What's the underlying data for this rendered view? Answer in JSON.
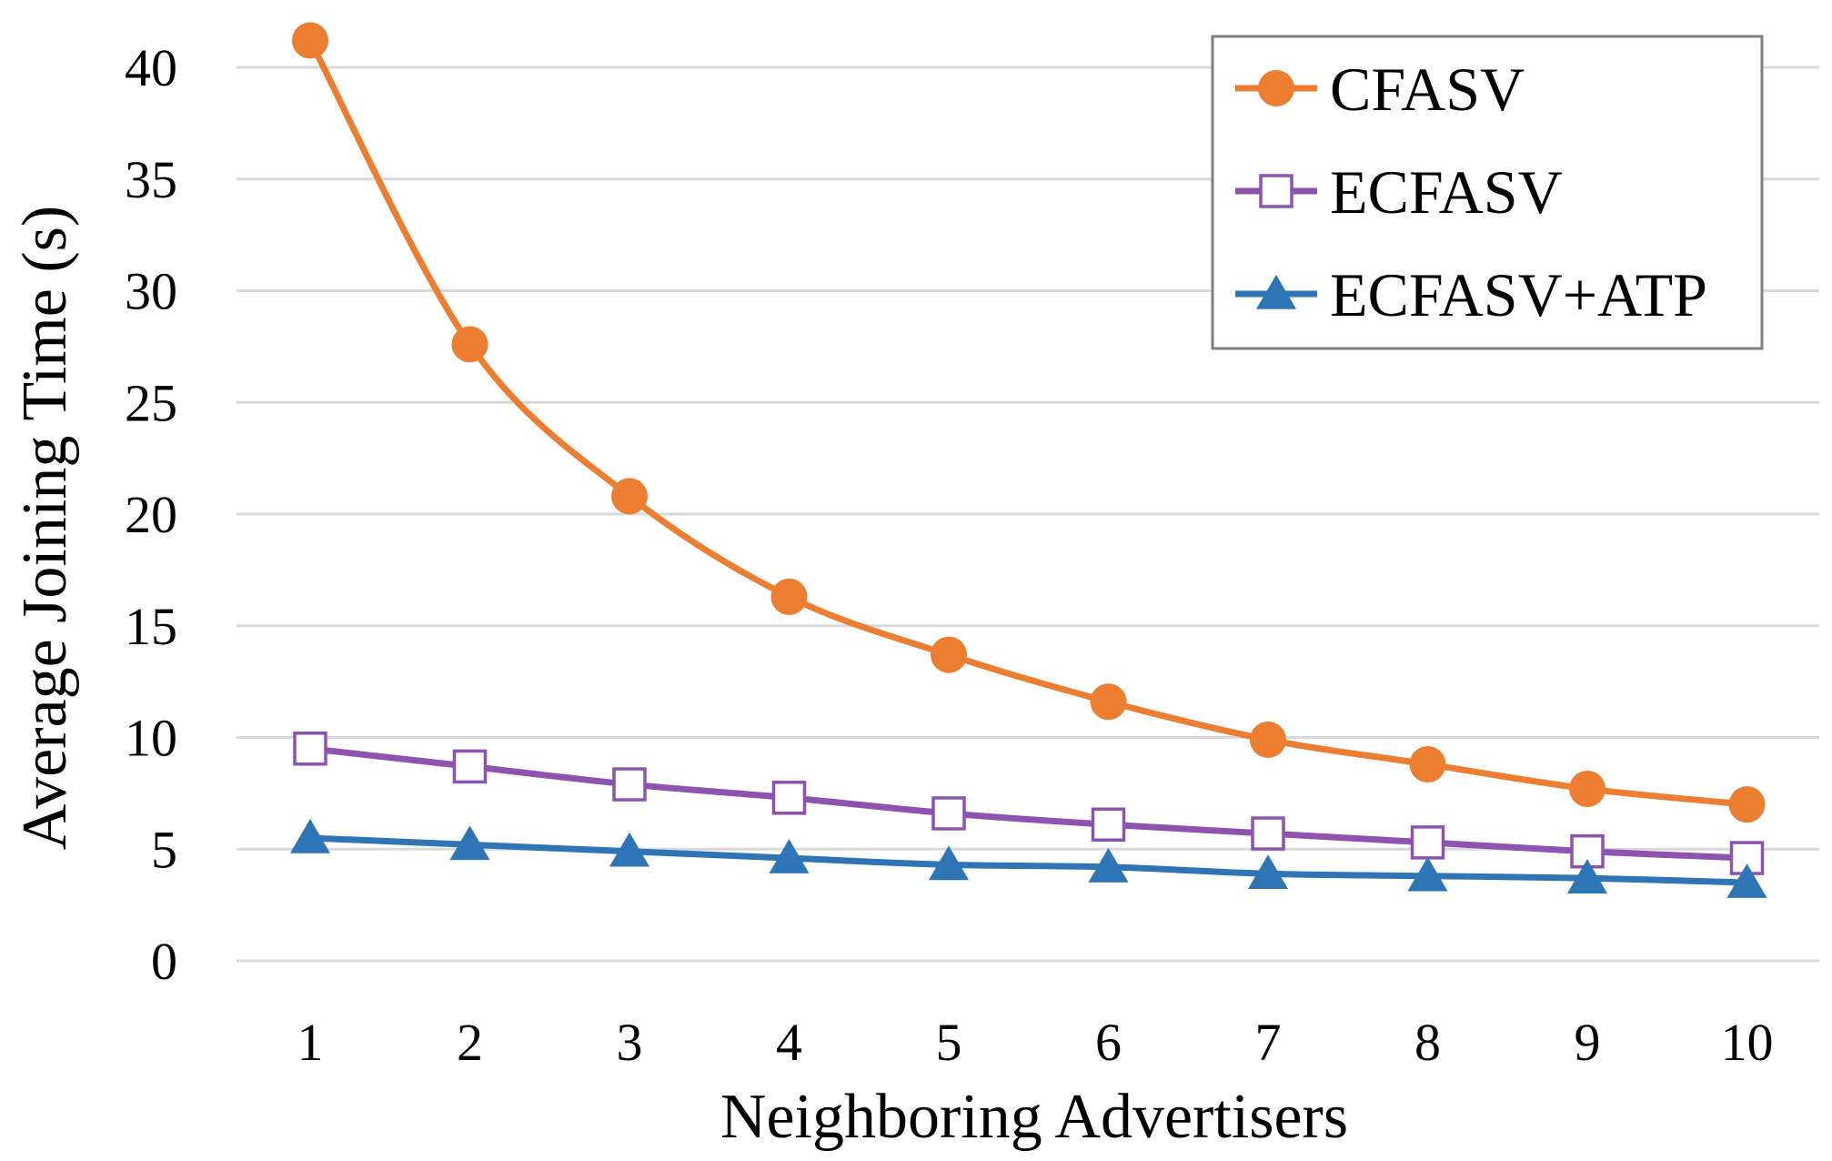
{
  "chart_data": {
    "type": "line",
    "title": "",
    "xlabel": "Neighboring Advertisers",
    "ylabel": "Average Joining Time (s)",
    "categories": [
      "1",
      "2",
      "3",
      "4",
      "5",
      "6",
      "7",
      "8",
      "9",
      "10"
    ],
    "x": [
      1,
      2,
      3,
      4,
      5,
      6,
      7,
      8,
      9,
      10
    ],
    "ylim": [
      0,
      40
    ],
    "yticks": [
      0,
      5,
      10,
      15,
      20,
      25,
      30,
      35,
      40
    ],
    "ytick_labels": [
      "0",
      "5",
      "10",
      "15",
      "20",
      "25",
      "30",
      "35",
      "40"
    ],
    "grid": true,
    "legend_position": "top-right",
    "series": [
      {
        "name": "CFASV",
        "marker": "circle",
        "color": "#ED7D31",
        "values": [
          41.2,
          27.6,
          20.8,
          16.3,
          13.7,
          11.6,
          9.9,
          8.8,
          7.7,
          7.0
        ]
      },
      {
        "name": "ECFASV",
        "marker": "square-open",
        "color": "#8E52B0",
        "values": [
          9.5,
          8.7,
          7.9,
          7.3,
          6.6,
          6.1,
          5.7,
          5.3,
          4.9,
          4.6
        ]
      },
      {
        "name": "ECFASV+ATP",
        "marker": "triangle",
        "color": "#2E75B6",
        "values": [
          5.5,
          5.2,
          4.9,
          4.6,
          4.3,
          4.2,
          3.9,
          3.8,
          3.7,
          3.5
        ]
      }
    ]
  }
}
